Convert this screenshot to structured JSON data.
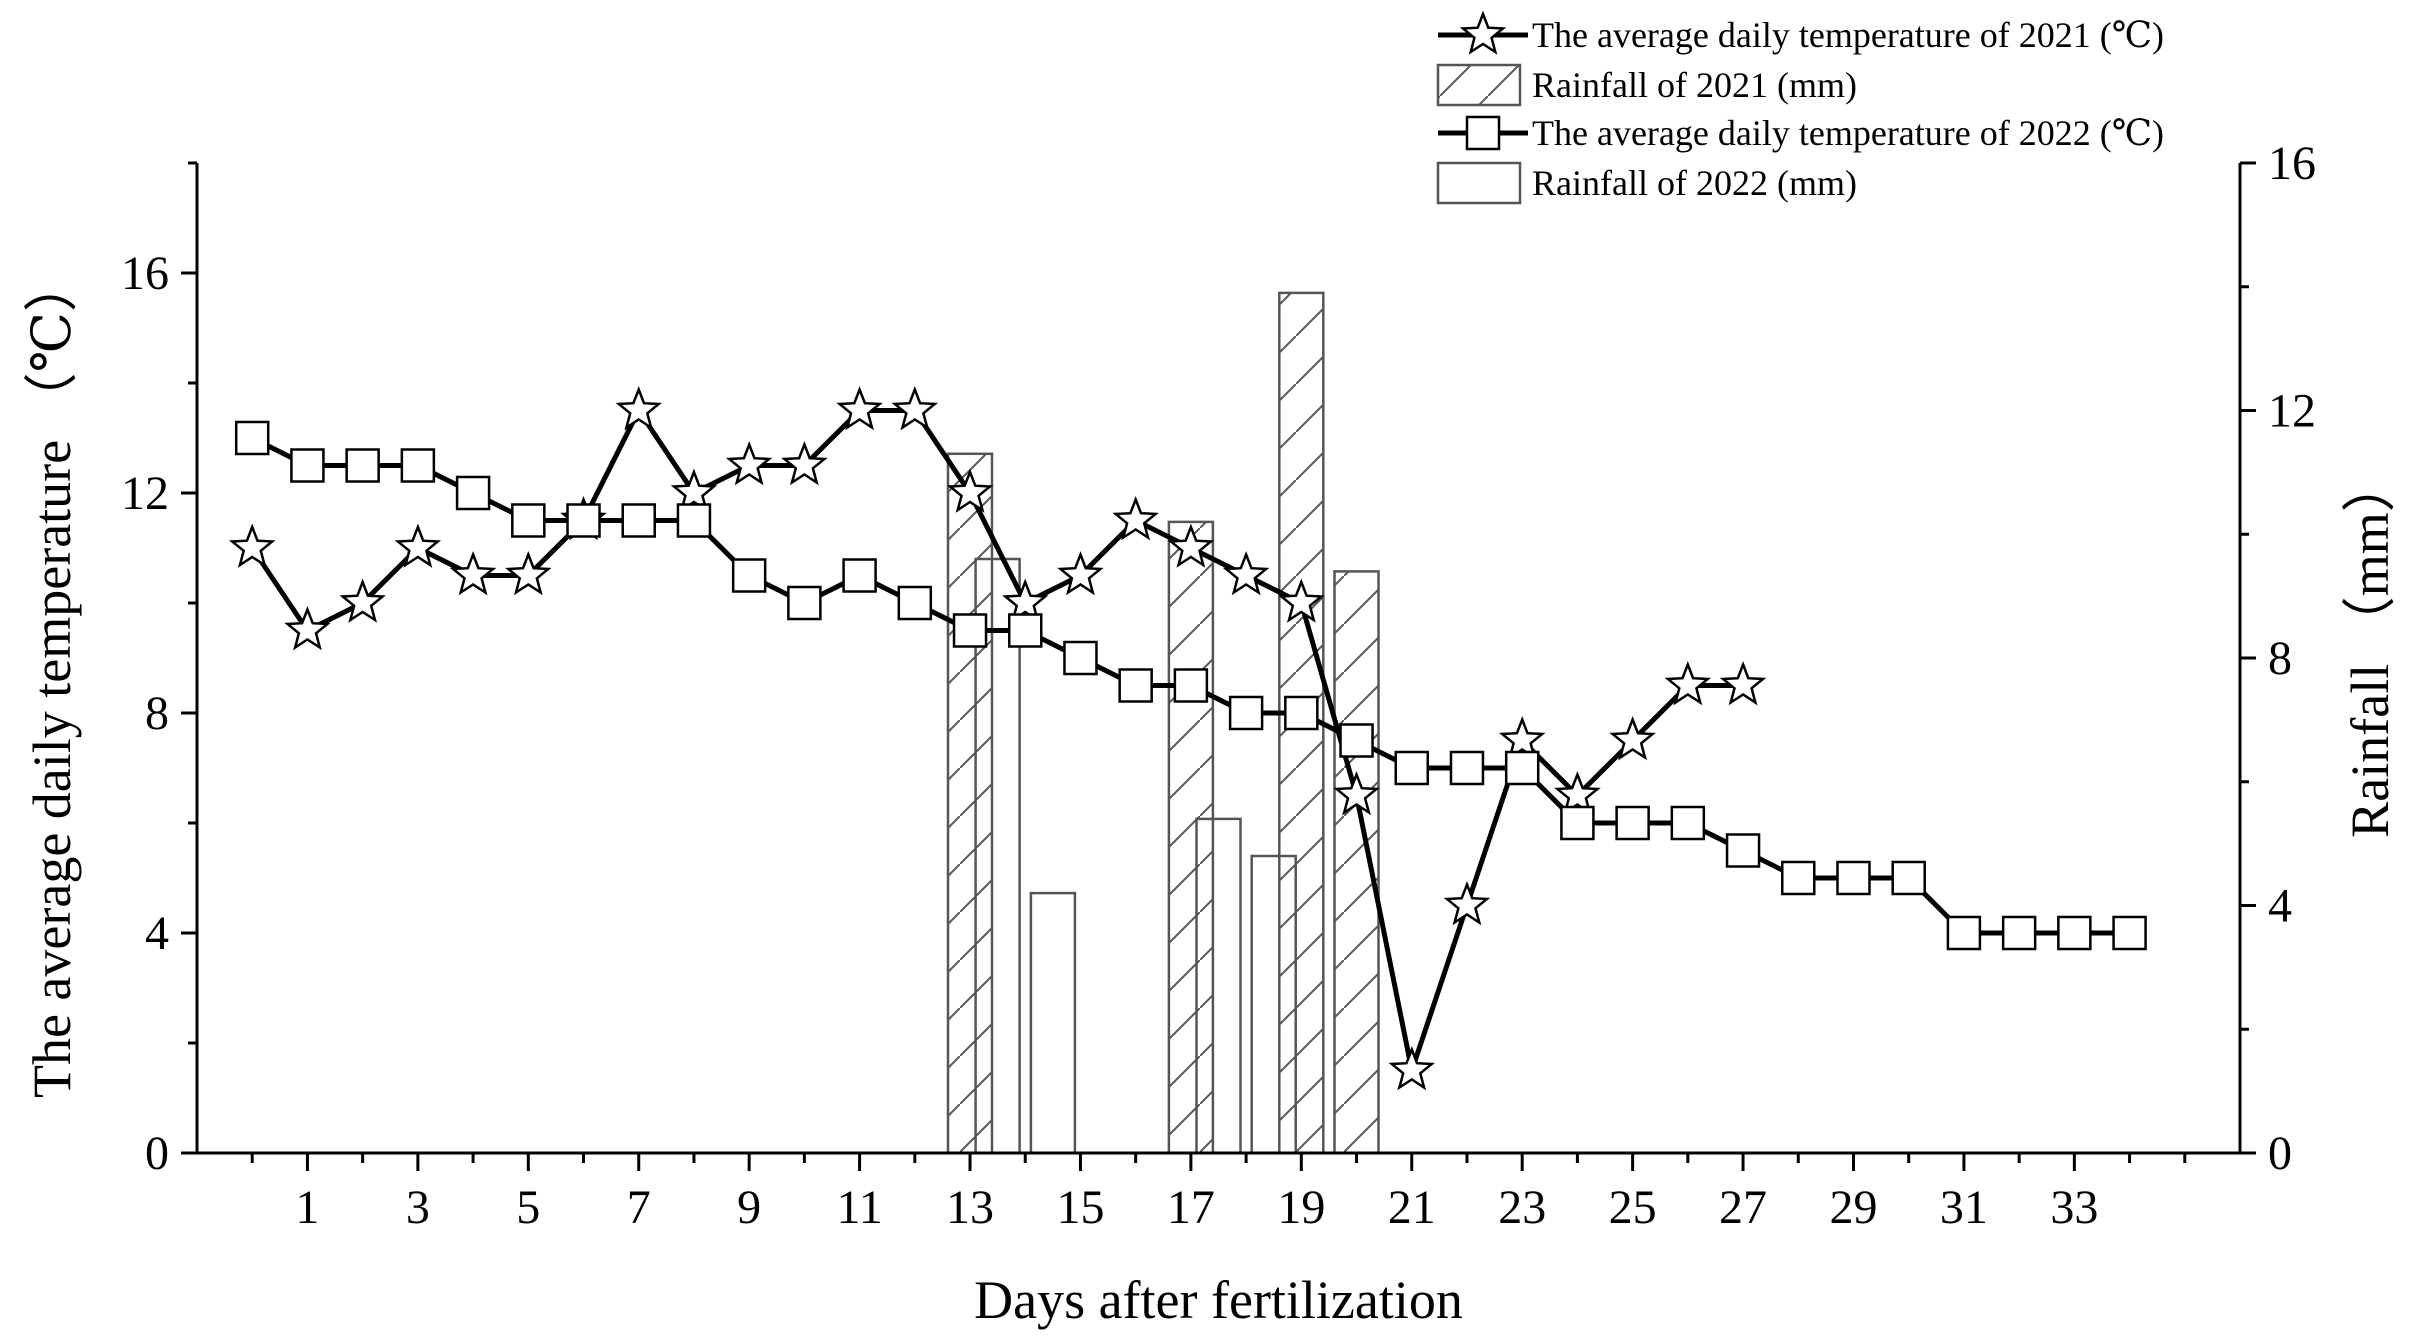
{
  "chart_data": {
    "type": "line+bar",
    "title": "",
    "xlabel": "Days after fertilization",
    "ylabel_left": "The average daily temperature （℃）",
    "ylabel_right": "Rainfall （mm）",
    "xlim": [
      -1,
      36
    ],
    "ylim_left": [
      0,
      18
    ],
    "ylim_right": [
      0,
      16
    ],
    "x_ticks": [
      1,
      3,
      5,
      7,
      9,
      11,
      13,
      15,
      17,
      19,
      21,
      23,
      25,
      27,
      29,
      31,
      33
    ],
    "y_left_ticks": [
      0,
      4,
      8,
      12,
      16
    ],
    "y_right_ticks": [
      0,
      4,
      8,
      12,
      16
    ],
    "legend_position": "top-right",
    "series": [
      {
        "name": "The average daily temperature of 2021 (℃)",
        "kind": "line",
        "marker": "star",
        "axis": "left",
        "x": [
          0,
          1,
          2,
          3,
          4,
          5,
          6,
          7,
          8,
          9,
          10,
          11,
          12,
          13,
          14,
          15,
          16,
          17,
          18,
          19,
          20,
          21,
          22,
          23,
          24,
          25,
          26,
          27
        ],
        "values": [
          11.0,
          9.5,
          10.0,
          11.0,
          10.5,
          10.5,
          11.5,
          13.5,
          12.0,
          12.5,
          12.5,
          13.5,
          13.5,
          12.0,
          10.0,
          10.5,
          11.5,
          11.0,
          10.5,
          10.0,
          6.5,
          1.5,
          4.5,
          7.5,
          6.5,
          7.5,
          8.5,
          8.5
        ]
      },
      {
        "name": "Rainfall of 2021 (mm)",
        "kind": "bar",
        "pattern": "hatched",
        "axis": "right",
        "x": [
          13,
          17,
          19,
          20
        ],
        "values": [
          11.3,
          10.2,
          13.9,
          9.4
        ]
      },
      {
        "name": "The average daily temperature of 2022 (℃)",
        "kind": "line",
        "marker": "square",
        "axis": "left",
        "x": [
          0,
          1,
          2,
          3,
          4,
          5,
          6,
          7,
          8,
          9,
          10,
          11,
          12,
          13,
          14,
          15,
          16,
          17,
          18,
          19,
          20,
          21,
          22,
          23,
          24,
          25,
          26,
          27,
          28,
          29,
          30,
          31,
          32,
          33,
          34
        ],
        "values": [
          13.0,
          12.5,
          12.5,
          12.5,
          12.0,
          11.5,
          11.5,
          11.5,
          11.5,
          10.5,
          10.0,
          10.5,
          10.0,
          9.5,
          9.5,
          9.0,
          8.5,
          8.5,
          8.0,
          8.0,
          7.5,
          7.0,
          7.0,
          7.0,
          6.0,
          6.0,
          6.0,
          5.5,
          5.0,
          5.0,
          5.0,
          4.0,
          4.0,
          4.0,
          4.0
        ]
      },
      {
        "name": "Rainfall of 2022 (mm)",
        "kind": "bar",
        "pattern": "plain",
        "axis": "right",
        "x": [
          13,
          14,
          17,
          18
        ],
        "values": [
          9.6,
          4.2,
          5.4,
          4.8
        ]
      }
    ]
  }
}
